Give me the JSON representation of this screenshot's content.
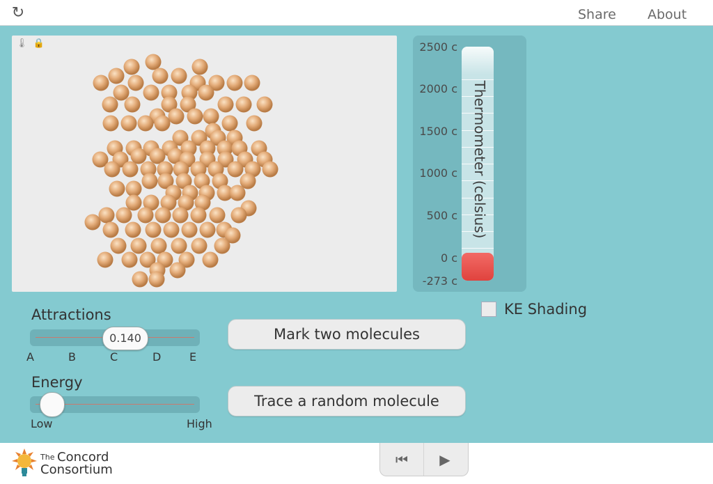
{
  "header": {
    "share_label": "Share",
    "about_label": "About",
    "reload_icon": "reload-icon"
  },
  "thermometer": {
    "title": "Thermometer (celsius)",
    "labels": [
      "2500 c",
      "2000 c",
      "1500 c",
      "1000 c",
      "500 c",
      "0 c",
      "-273 c"
    ],
    "fill_color": "#e8504b"
  },
  "attractions": {
    "label": "Attractions",
    "value": "0.140",
    "ticks": [
      "A",
      "B",
      "C",
      "D",
      "E"
    ]
  },
  "energy": {
    "label": "Energy",
    "min_label": "Low",
    "max_label": "High",
    "level_fraction": 0.1
  },
  "buttons": {
    "mark": "Mark two molecules",
    "trace": "Trace a random molecule"
  },
  "ke_shading": {
    "label": "KE Shading",
    "checked": false
  },
  "footer": {
    "logo_the": "The",
    "logo_concord": "Concord",
    "logo_consortium": "Consortium"
  },
  "colors": {
    "panel": "#84cad0",
    "molecule": "#e3ab78"
  }
}
